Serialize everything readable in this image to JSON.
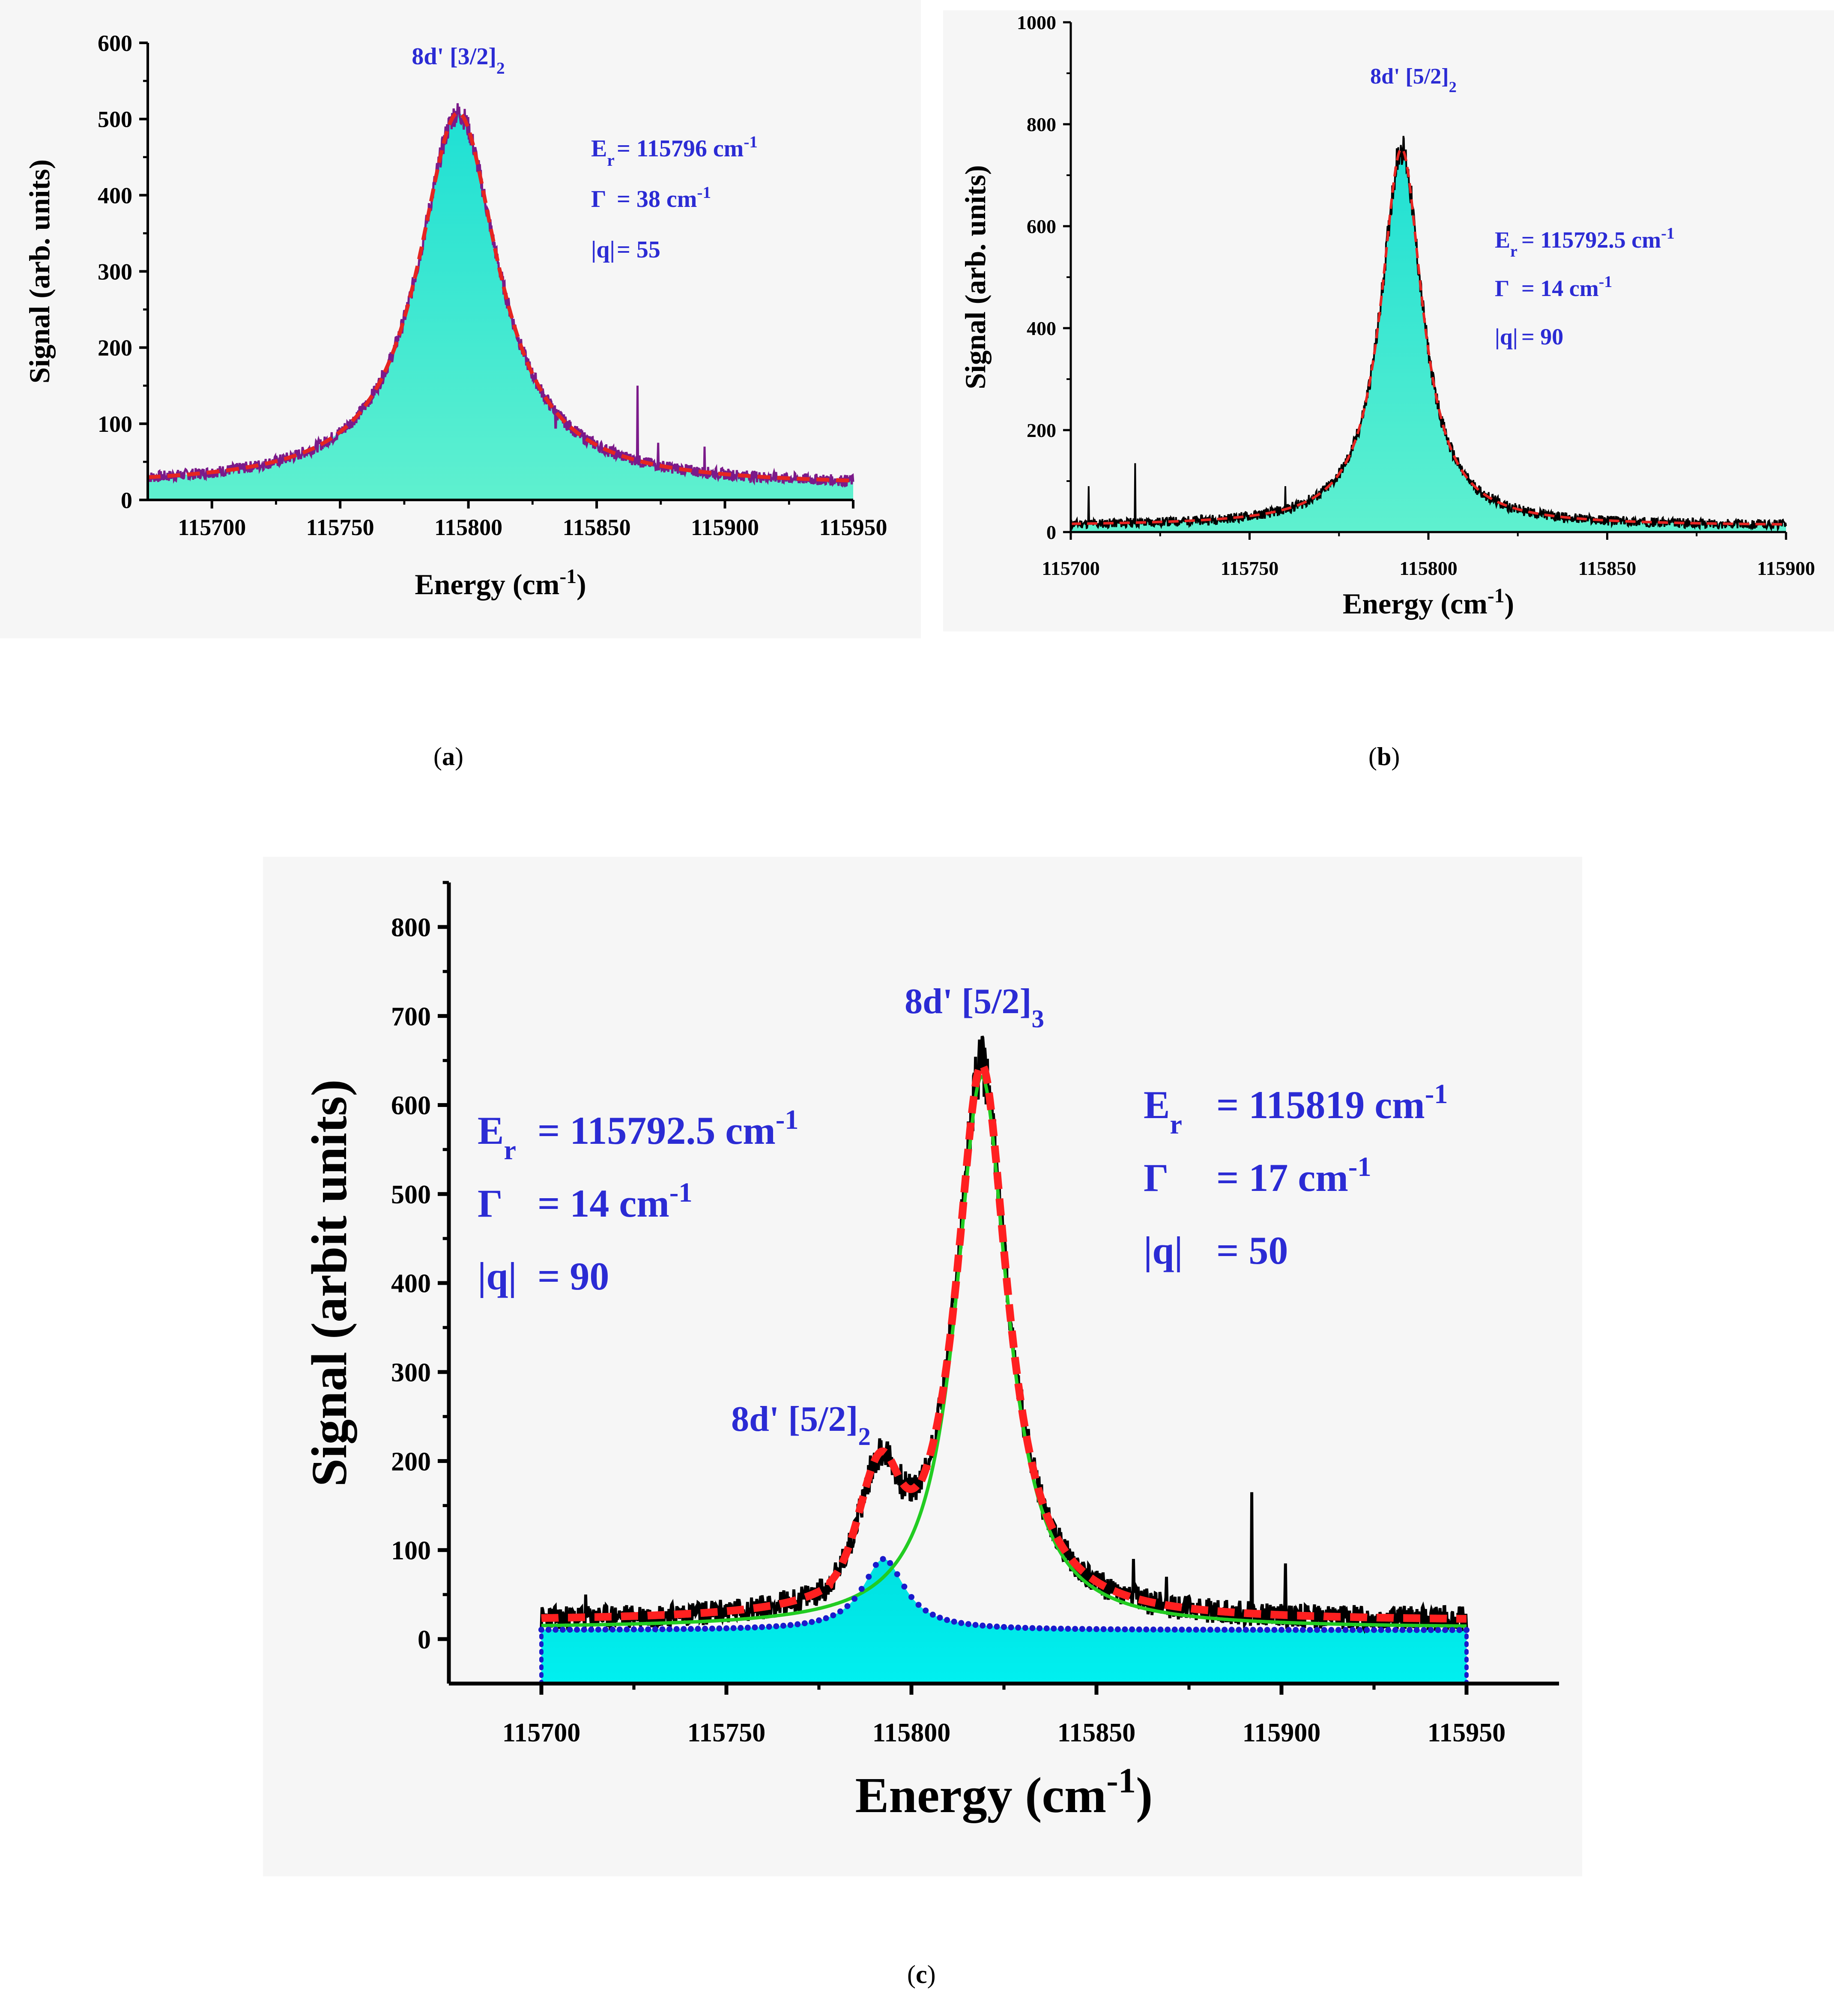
{
  "chart_data": [
    {
      "id": "a",
      "type": "line",
      "caption": "a",
      "xlabel": "Energy (cm",
      "xlabel_sup": "-1",
      "xlabel_end": ")",
      "ylabel": "Signal (arb. units)",
      "xlim": [
        115675,
        115950
      ],
      "ylim": [
        0,
        600
      ],
      "xticks": [
        115700,
        115750,
        115800,
        115850,
        115900,
        115950
      ],
      "yticks": [
        0,
        100,
        200,
        300,
        400,
        500,
        600
      ],
      "peak_label": {
        "main": "8d' [3/2]",
        "sub": "2"
      },
      "params": [
        {
          "sym": "E",
          "sym_sub": "r",
          "text": "= 115796 cm",
          "sup": "-1"
        },
        {
          "sym": "Γ",
          "sym_sub": "",
          "text": "= 38 cm",
          "sup": "-1"
        },
        {
          "sym": "|q|",
          "sym_sub": "",
          "text": "= 55",
          "sup": ""
        }
      ],
      "fit": {
        "center": 115796,
        "gamma": 38,
        "amplitude": 490,
        "baseline": 18
      },
      "series": [
        {
          "name": "experimental signal",
          "color": "#7b1a8a"
        },
        {
          "name": "Fano fit",
          "color": "#e52521",
          "style": "dashed"
        },
        {
          "name": "filled profile",
          "color": "#40e0d0"
        }
      ],
      "spikes": [
        {
          "x": 115866,
          "y": 150
        },
        {
          "x": 115874,
          "y": 75
        },
        {
          "x": 115892,
          "y": 70
        },
        {
          "x": 115834,
          "y": 95
        },
        {
          "x": 115858,
          "y": 65
        }
      ]
    },
    {
      "id": "b",
      "type": "line",
      "caption": "b",
      "xlabel": "Energy (cm",
      "xlabel_sup": "-1",
      "xlabel_end": ")",
      "ylabel": "Signal (arb. units)",
      "xlim": [
        115700,
        115900
      ],
      "ylim": [
        0,
        1000
      ],
      "xticks": [
        115700,
        115750,
        115800,
        115850,
        115900
      ],
      "yticks": [
        0,
        200,
        400,
        600,
        800,
        1000
      ],
      "peak_label": {
        "main": "8d' [5/2]",
        "sub": "2"
      },
      "params": [
        {
          "sym": "E",
          "sym_sub": "r",
          "text": "= 115792.5 cm",
          "sup": "-1"
        },
        {
          "sym": "Γ",
          "sym_sub": "",
          "text": "= 14 cm",
          "sup": "-1"
        },
        {
          "sym": "|q|",
          "sym_sub": "",
          "text": "=  90",
          "sup": ""
        }
      ],
      "fit": {
        "center": 115792.5,
        "gamma": 14,
        "amplitude": 740,
        "baseline": 12
      },
      "series": [
        {
          "name": "experimental signal",
          "color": "#000000"
        },
        {
          "name": "Fano fit",
          "color": "#e52521",
          "style": "dashed"
        },
        {
          "name": "filled profile",
          "color": "#40e0d0"
        }
      ],
      "spikes": [
        {
          "x": 115705,
          "y": 90
        },
        {
          "x": 115718,
          "y": 135
        },
        {
          "x": 115760,
          "y": 90
        }
      ]
    },
    {
      "id": "c",
      "type": "line",
      "caption": "c",
      "xlabel": "Energy (cm",
      "xlabel_sup": "-1",
      "xlabel_end": ")",
      "ylabel": "Signal (arbit units)",
      "xlim": [
        115675,
        115975
      ],
      "ylim": [
        -50,
        850
      ],
      "xticks": [
        115700,
        115750,
        115800,
        115850,
        115900,
        115950
      ],
      "yticks": [
        0,
        100,
        200,
        300,
        400,
        500,
        600,
        700,
        800
      ],
      "peak_labels": [
        {
          "main": "8d' [5/2]",
          "sub": "3",
          "x": 115819,
          "y": 700
        },
        {
          "main": "8d' [5/2]",
          "sub": "2",
          "x": 115785,
          "y": 230
        }
      ],
      "params_left": [
        {
          "sym": "E",
          "sym_sub": "r",
          "text": "= 115792.5 cm",
          "sup": "-1"
        },
        {
          "sym": "Γ",
          "sym_sub": "",
          "text": "= 14 cm",
          "sup": "-1"
        },
        {
          "sym": "|q|",
          "sym_sub": "",
          "text": "=  90",
          "sup": ""
        }
      ],
      "params_right": [
        {
          "sym": "E",
          "sym_sub": "r",
          "text": "= 115819 cm",
          "sup": "-1"
        },
        {
          "sym": "Γ",
          "sym_sub": "",
          "text": "= 17 cm",
          "sup": "-1"
        },
        {
          "sym": "|q|",
          "sym_sub": "",
          "text": "=  50",
          "sup": ""
        }
      ],
      "peak1": {
        "center": 115792.5,
        "gamma": 14,
        "amplitude": 80,
        "baseline": 10
      },
      "peak2": {
        "center": 115819,
        "gamma": 17,
        "amplitude": 620,
        "baseline": 12
      },
      "series": [
        {
          "name": "experimental signal",
          "color": "#000000"
        },
        {
          "name": "total fit",
          "color": "#ff2020",
          "style": "dashed"
        },
        {
          "name": "8d' [5/2]3 component",
          "color": "#22cc22"
        },
        {
          "name": "8d' [5/2]2 component",
          "color": "#1a1acc",
          "style": "dotted"
        },
        {
          "name": "filled profile",
          "color": "#00e5e5"
        }
      ],
      "spikes": [
        {
          "x": 115892,
          "y": 165
        },
        {
          "x": 115901,
          "y": 85
        },
        {
          "x": 115860,
          "y": 90
        },
        {
          "x": 115869,
          "y": 70
        },
        {
          "x": 115712,
          "y": 50
        }
      ]
    }
  ],
  "colors": {
    "label_blue": "#2b2bd4",
    "axis": "#000000",
    "panel_bg": "#f6f6f6"
  }
}
